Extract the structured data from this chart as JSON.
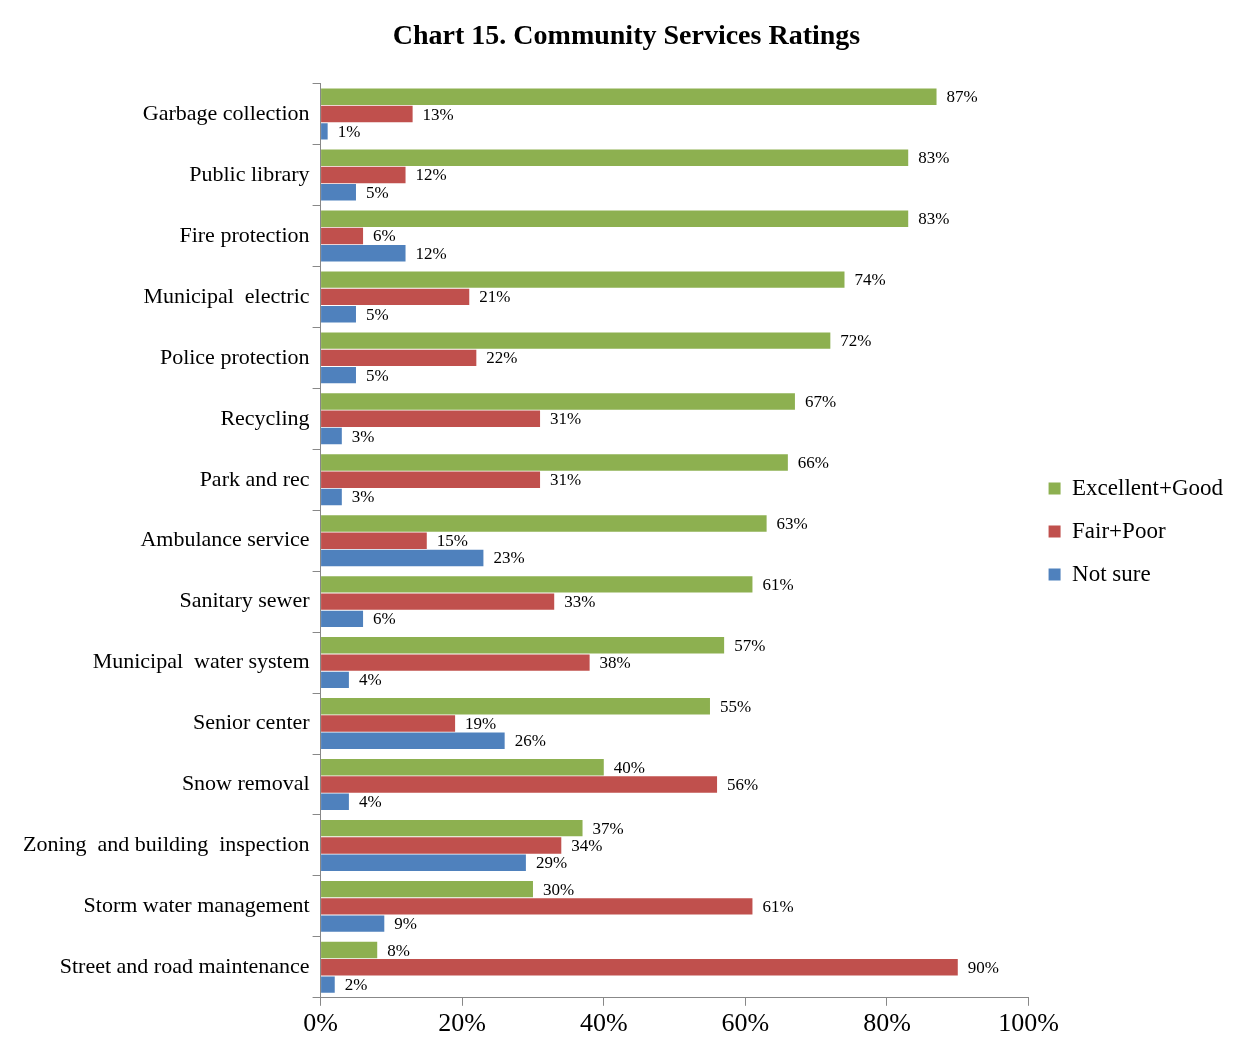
{
  "chart_data": {
    "type": "bar",
    "orientation": "horizontal",
    "title": "Chart 15. Community Services Ratings",
    "categories": [
      "Garbage collection",
      "Public library",
      "Fire protection",
      "Municipal  electric",
      "Police protection",
      "Recycling",
      "Park and rec",
      "Ambulance service",
      "Sanitary sewer",
      "Municipal  water system",
      "Senior center",
      "Snow removal",
      "Zoning  and building  inspection",
      "Storm water management",
      "Street and road maintenance"
    ],
    "series": [
      {
        "name": "Excellent+Good",
        "color": "#8db050",
        "values": [
          87,
          83,
          83,
          74,
          72,
          67,
          66,
          63,
          61,
          57,
          55,
          40,
          37,
          30,
          8
        ],
        "value_labels": [
          "87%",
          "83%",
          "83%",
          "74%",
          "72%",
          "67%",
          "66%",
          "63%",
          "61%",
          "57%",
          "55%",
          "40%",
          "37%",
          "30%",
          "8%"
        ]
      },
      {
        "name": "Fair+Poor",
        "color": "#c0504d",
        "values": [
          13,
          12,
          6,
          21,
          22,
          31,
          31,
          15,
          33,
          38,
          19,
          56,
          34,
          61,
          90
        ],
        "value_labels": [
          "13%",
          "12%",
          "6%",
          "21%",
          "22%",
          "31%",
          "31%",
          "15%",
          "33%",
          "38%",
          "19%",
          "56%",
          "34%",
          "61%",
          "90%"
        ]
      },
      {
        "name": "Not sure",
        "color": "#4f81bd",
        "values": [
          1,
          5,
          12,
          5,
          5,
          3,
          3,
          23,
          6,
          4,
          26,
          4,
          29,
          9,
          2
        ],
        "value_labels": [
          "1%",
          "5%",
          "12%",
          "5%",
          "5%",
          "3%",
          "3%",
          "23%",
          "6%",
          "4%",
          "26%",
          "4%",
          "29%",
          "9%",
          "2%"
        ]
      }
    ],
    "xlim": [
      0,
      100
    ],
    "xticks": [
      {
        "value": 0,
        "label": "0%"
      },
      {
        "value": 20,
        "label": "20%"
      },
      {
        "value": 40,
        "label": "40%"
      },
      {
        "value": 60,
        "label": "60%"
      },
      {
        "value": 80,
        "label": "80%"
      },
      {
        "value": 100,
        "label": "100%"
      }
    ],
    "grid": false,
    "legend": "right"
  }
}
